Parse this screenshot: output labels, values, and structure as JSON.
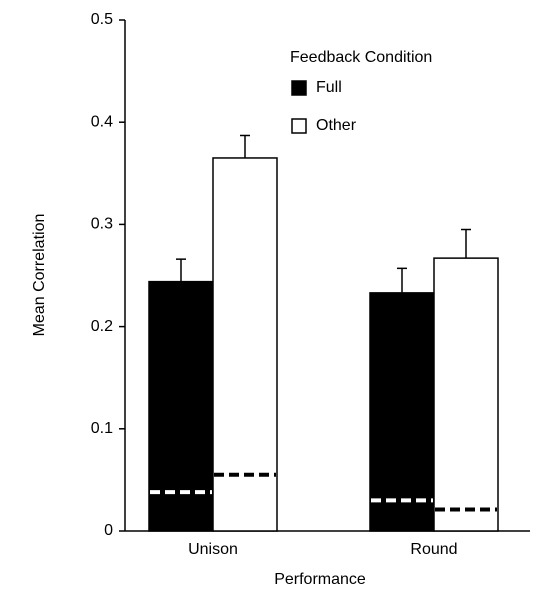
{
  "chart_data": {
    "type": "bar",
    "x_label": "Performance",
    "y_label": "Mean Correlation",
    "legend_title": "Feedback Condition",
    "categories": [
      "Unison",
      "Round"
    ],
    "series": [
      {
        "name": "Full",
        "color": "#000000",
        "values": [
          0.244,
          0.233
        ],
        "errors": [
          0.022,
          0.024
        ],
        "chance_values": [
          0.038,
          0.03
        ]
      },
      {
        "name": "Other",
        "color": "#ffffff",
        "values": [
          0.365,
          0.267
        ],
        "errors": [
          0.022,
          0.028
        ],
        "chance_values": [
          0.055,
          0.021
        ]
      }
    ],
    "ylim": [
      0,
      0.5
    ],
    "yticks": [
      0,
      0.1,
      0.2,
      0.3,
      0.4,
      0.5
    ],
    "grid": false
  }
}
